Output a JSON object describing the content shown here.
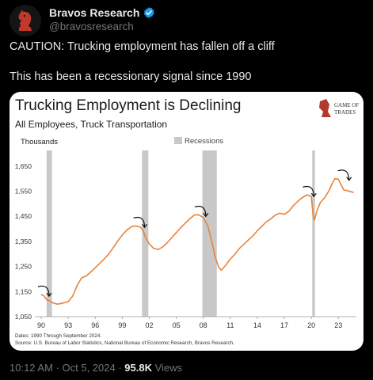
{
  "author": {
    "name": "Bravos Research",
    "handle": "@bravosresearch",
    "avatar_icon": "knight-avatar-icon",
    "verified_icon": "verified-badge-icon",
    "verified_color": "#1d9bf0"
  },
  "tweet": {
    "line1": "CAUTION: Trucking employment has fallen off a cliff",
    "line2": "This has been a recessionary signal since 1990"
  },
  "meta": {
    "time": "10:12 AM",
    "separator": " · ",
    "date": "Oct 5, 2024",
    "views_count": "95.8K",
    "views_label": "Views"
  },
  "chart_data": {
    "type": "line",
    "title": "Trucking Employment is Declining",
    "subtitle": "All Employees, Truck Transportation",
    "ylabel": "Thousands",
    "legend": [
      "Recessions"
    ],
    "legend_placement": "top-center",
    "logo_text": [
      "GAME OF",
      "TRADES"
    ],
    "line_color": "#e8833a",
    "recession_color": "#c8c8c8",
    "ylim": [
      1050,
      1700
    ],
    "xlim": [
      1990,
      2025
    ],
    "yticks": [
      1050,
      1150,
      1250,
      1350,
      1450,
      1550,
      1650
    ],
    "ytick_labels": [
      "1,050",
      "1,150",
      "1,250",
      "1,350",
      "1,450",
      "1,550",
      "1,650"
    ],
    "xticks": [
      1990,
      1993,
      1996,
      1999,
      2002,
      2005,
      2008,
      2011,
      2014,
      2017,
      2020,
      2023
    ],
    "xtick_labels": [
      "90",
      "93",
      "96",
      "99",
      "02",
      "05",
      "08",
      "11",
      "14",
      "17",
      "20",
      "23"
    ],
    "recessions": [
      [
        1990.6,
        1991.2
      ],
      [
        2001.2,
        2001.9
      ],
      [
        2007.9,
        2009.5
      ],
      [
        2020.1,
        2020.4
      ]
    ],
    "series": [
      {
        "x": [
          1990,
          1990.3,
          1990.6,
          1991,
          1991.3,
          1991.8,
          1992.3,
          1993,
          1993.5,
          1994,
          1994.5,
          1995,
          1995.5,
          1996,
          1996.5,
          1997,
          1997.5,
          1998,
          1998.5,
          1999,
          1999.5,
          2000,
          2000.5,
          2001,
          2001.3,
          2001.6,
          2002,
          2002.5,
          2003,
          2003.5,
          2004,
          2004.5,
          2005,
          2005.5,
          2006,
          2006.5,
          2007,
          2007.5,
          2008,
          2008.5,
          2009,
          2009.3,
          2009.7,
          2010,
          2010.5,
          2011,
          2011.5,
          2012,
          2012.5,
          2013,
          2013.5,
          2014,
          2014.5,
          2015,
          2015.5,
          2016,
          2016.5,
          2017,
          2017.5,
          2018,
          2018.5,
          2019,
          2019.5,
          2020,
          2020.2,
          2020.35,
          2020.6,
          2021,
          2021.5,
          2022,
          2022.3,
          2022.6,
          2023,
          2023.3,
          2023.6,
          2024,
          2024.4,
          2024.7
        ],
        "y": [
          1138,
          1133,
          1118,
          1112,
          1105,
          1100,
          1103,
          1110,
          1132,
          1175,
          1205,
          1212,
          1228,
          1245,
          1262,
          1280,
          1300,
          1325,
          1352,
          1375,
          1395,
          1408,
          1412,
          1407,
          1395,
          1365,
          1340,
          1322,
          1318,
          1328,
          1345,
          1365,
          1385,
          1405,
          1422,
          1440,
          1455,
          1456,
          1445,
          1412,
          1340,
          1290,
          1248,
          1235,
          1255,
          1280,
          1298,
          1322,
          1338,
          1355,
          1372,
          1392,
          1410,
          1428,
          1440,
          1455,
          1462,
          1458,
          1470,
          1492,
          1510,
          1525,
          1535,
          1530,
          1450,
          1435,
          1470,
          1505,
          1525,
          1555,
          1580,
          1600,
          1598,
          1575,
          1555,
          1552,
          1548,
          1545
        ]
      }
    ],
    "footnote_dates": "Dates: 1990 Through September 2024.",
    "footnote_source": "Source: U.S. Bureau of Labor Statistics, National Bureau of Economic Research, Bravos Research."
  }
}
